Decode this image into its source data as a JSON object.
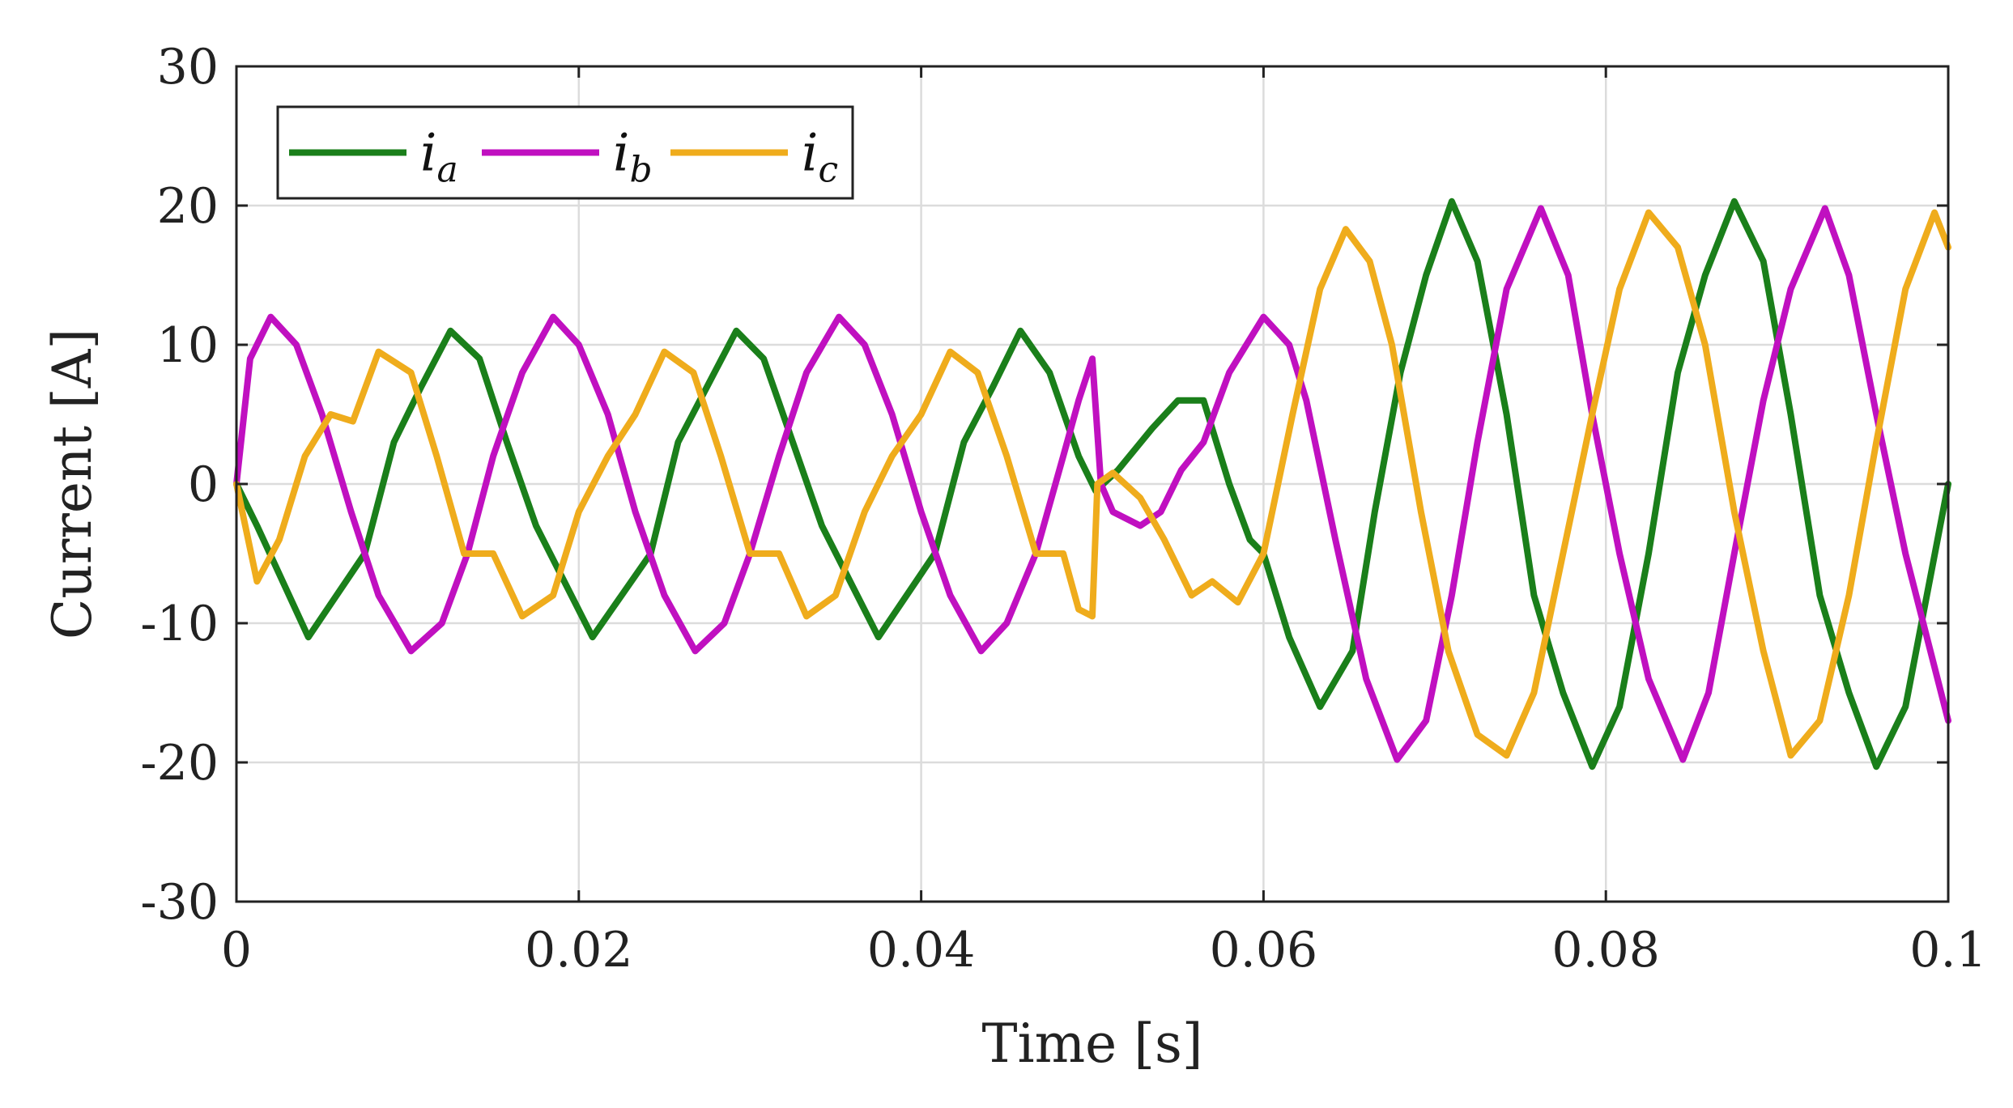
{
  "chart_data": {
    "type": "line",
    "title": "",
    "xlabel": "Time [s]",
    "ylabel": "Current [A]",
    "xlim": [
      0,
      0.1
    ],
    "ylim": [
      -30,
      30
    ],
    "xticks": [
      0,
      0.02,
      0.04,
      0.06,
      0.08,
      0.1
    ],
    "xtick_labels": [
      "0",
      "0.02",
      "0.04",
      "0.06",
      "0.08",
      "0.1"
    ],
    "yticks": [
      -30,
      -20,
      -10,
      0,
      10,
      20,
      30
    ],
    "ytick_labels": [
      "-30",
      "-20",
      "-10",
      "0",
      "10",
      "20",
      "30"
    ],
    "grid": true,
    "legend_position": "top-left",
    "series": [
      {
        "name": "i_a",
        "label_main": "i",
        "label_sub": "a",
        "color": "#1a7f1a",
        "points": [
          [
            0,
            0
          ],
          [
            0.0012,
            -3
          ],
          [
            0.0042,
            -11
          ],
          [
            0.0075,
            -5
          ],
          [
            0.0092,
            3
          ],
          [
            0.0108,
            7
          ],
          [
            0.0125,
            11
          ],
          [
            0.0142,
            9
          ],
          [
            0.0158,
            3
          ],
          [
            0.0175,
            -3
          ],
          [
            0.0208,
            -11
          ],
          [
            0.0242,
            -5
          ],
          [
            0.0258,
            3
          ],
          [
            0.0275,
            7
          ],
          [
            0.0292,
            11
          ],
          [
            0.0308,
            9
          ],
          [
            0.0325,
            3
          ],
          [
            0.0342,
            -3
          ],
          [
            0.0375,
            -11
          ],
          [
            0.0408,
            -5
          ],
          [
            0.0425,
            3
          ],
          [
            0.0442,
            7
          ],
          [
            0.0458,
            11
          ],
          [
            0.0475,
            8
          ],
          [
            0.0492,
            2
          ],
          [
            0.0502,
            -0.5
          ],
          [
            0.0515,
            1
          ],
          [
            0.0535,
            4
          ],
          [
            0.055,
            6
          ],
          [
            0.0565,
            6
          ],
          [
            0.058,
            0
          ],
          [
            0.0592,
            -4
          ],
          [
            0.06,
            -5
          ],
          [
            0.0615,
            -11
          ],
          [
            0.0633,
            -16
          ],
          [
            0.0652,
            -12
          ],
          [
            0.0665,
            -2
          ],
          [
            0.068,
            8
          ],
          [
            0.0695,
            15
          ],
          [
            0.071,
            20.3
          ],
          [
            0.0725,
            16
          ],
          [
            0.0742,
            5
          ],
          [
            0.0758,
            -8
          ],
          [
            0.0775,
            -15
          ],
          [
            0.0792,
            -20.3
          ],
          [
            0.0808,
            -16
          ],
          [
            0.0825,
            -5
          ],
          [
            0.0842,
            8
          ],
          [
            0.0858,
            15
          ],
          [
            0.0875,
            20.3
          ],
          [
            0.0892,
            16
          ],
          [
            0.0908,
            5
          ],
          [
            0.0925,
            -8
          ],
          [
            0.0942,
            -15
          ],
          [
            0.0958,
            -20.3
          ],
          [
            0.0975,
            -16
          ],
          [
            0.1,
            0
          ]
        ]
      },
      {
        "name": "i_b",
        "label_main": "i",
        "label_sub": "b",
        "color": "#c010c0",
        "points": [
          [
            0,
            0
          ],
          [
            0.0008,
            9
          ],
          [
            0.002,
            12
          ],
          [
            0.0035,
            10
          ],
          [
            0.005,
            5
          ],
          [
            0.0067,
            -2
          ],
          [
            0.0083,
            -8
          ],
          [
            0.0102,
            -12
          ],
          [
            0.012,
            -10
          ],
          [
            0.0135,
            -5
          ],
          [
            0.015,
            2
          ],
          [
            0.0167,
            8
          ],
          [
            0.0185,
            12
          ],
          [
            0.02,
            10
          ],
          [
            0.0217,
            5
          ],
          [
            0.0233,
            -2
          ],
          [
            0.025,
            -8
          ],
          [
            0.0268,
            -12
          ],
          [
            0.0285,
            -10
          ],
          [
            0.03,
            -5
          ],
          [
            0.0317,
            2
          ],
          [
            0.0333,
            8
          ],
          [
            0.0352,
            12
          ],
          [
            0.0367,
            10
          ],
          [
            0.0383,
            5
          ],
          [
            0.04,
            -2
          ],
          [
            0.0417,
            -8
          ],
          [
            0.0435,
            -12
          ],
          [
            0.045,
            -10
          ],
          [
            0.0467,
            -5
          ],
          [
            0.0483,
            2
          ],
          [
            0.0492,
            6
          ],
          [
            0.05,
            9
          ],
          [
            0.0505,
            0
          ],
          [
            0.0512,
            -2
          ],
          [
            0.0528,
            -3
          ],
          [
            0.054,
            -2
          ],
          [
            0.0552,
            1
          ],
          [
            0.0565,
            3
          ],
          [
            0.058,
            8
          ],
          [
            0.06,
            12
          ],
          [
            0.0615,
            10
          ],
          [
            0.0625,
            6
          ],
          [
            0.0642,
            -4
          ],
          [
            0.066,
            -14
          ],
          [
            0.0678,
            -19.8
          ],
          [
            0.0695,
            -17
          ],
          [
            0.071,
            -8
          ],
          [
            0.0725,
            3
          ],
          [
            0.0742,
            14
          ],
          [
            0.0762,
            19.8
          ],
          [
            0.0778,
            15
          ],
          [
            0.0792,
            5
          ],
          [
            0.0808,
            -5
          ],
          [
            0.0825,
            -14
          ],
          [
            0.0845,
            -19.8
          ],
          [
            0.086,
            -15
          ],
          [
            0.0875,
            -5
          ],
          [
            0.0892,
            6
          ],
          [
            0.0908,
            14
          ],
          [
            0.0928,
            19.8
          ],
          [
            0.0942,
            15
          ],
          [
            0.0958,
            5
          ],
          [
            0.0975,
            -5
          ],
          [
            0.1,
            -17
          ]
        ]
      },
      {
        "name": "i_c",
        "label_main": "i",
        "label_sub": "c",
        "color": "#efac1c",
        "points": [
          [
            0,
            0
          ],
          [
            0.0012,
            -7
          ],
          [
            0.0025,
            -4
          ],
          [
            0.004,
            2
          ],
          [
            0.0055,
            5
          ],
          [
            0.0068,
            4.5
          ],
          [
            0.0083,
            9.5
          ],
          [
            0.0102,
            8
          ],
          [
            0.0117,
            2
          ],
          [
            0.0133,
            -5
          ],
          [
            0.015,
            -5
          ],
          [
            0.0167,
            -9.5
          ],
          [
            0.0185,
            -8
          ],
          [
            0.02,
            -2
          ],
          [
            0.0217,
            2
          ],
          [
            0.0233,
            5
          ],
          [
            0.025,
            9.5
          ],
          [
            0.0267,
            8
          ],
          [
            0.0283,
            2
          ],
          [
            0.03,
            -5
          ],
          [
            0.0317,
            -5
          ],
          [
            0.0333,
            -9.5
          ],
          [
            0.035,
            -8
          ],
          [
            0.0367,
            -2
          ],
          [
            0.0383,
            2
          ],
          [
            0.04,
            5
          ],
          [
            0.0417,
            9.5
          ],
          [
            0.0433,
            8
          ],
          [
            0.045,
            2
          ],
          [
            0.0467,
            -5
          ],
          [
            0.0483,
            -5
          ],
          [
            0.0492,
            -9
          ],
          [
            0.05,
            -9.5
          ],
          [
            0.0503,
            0
          ],
          [
            0.0512,
            0.8
          ],
          [
            0.0528,
            -1
          ],
          [
            0.0542,
            -4
          ],
          [
            0.0558,
            -8
          ],
          [
            0.057,
            -7
          ],
          [
            0.0585,
            -8.5
          ],
          [
            0.06,
            -5
          ],
          [
            0.0617,
            5
          ],
          [
            0.0633,
            14
          ],
          [
            0.0648,
            18.3
          ],
          [
            0.0662,
            16
          ],
          [
            0.0675,
            10
          ],
          [
            0.0692,
            -2
          ],
          [
            0.0708,
            -12
          ],
          [
            0.0725,
            -18
          ],
          [
            0.0742,
            -19.5
          ],
          [
            0.0758,
            -15
          ],
          [
            0.0775,
            -5
          ],
          [
            0.0792,
            5
          ],
          [
            0.0808,
            14
          ],
          [
            0.0825,
            19.5
          ],
          [
            0.0842,
            17
          ],
          [
            0.0858,
            10
          ],
          [
            0.0875,
            -2
          ],
          [
            0.0892,
            -12
          ],
          [
            0.0908,
            -19.5
          ],
          [
            0.0925,
            -17
          ],
          [
            0.0942,
            -8
          ],
          [
            0.0958,
            3
          ],
          [
            0.0975,
            14
          ],
          [
            0.0992,
            19.5
          ],
          [
            0.1,
            17
          ]
        ]
      }
    ]
  }
}
